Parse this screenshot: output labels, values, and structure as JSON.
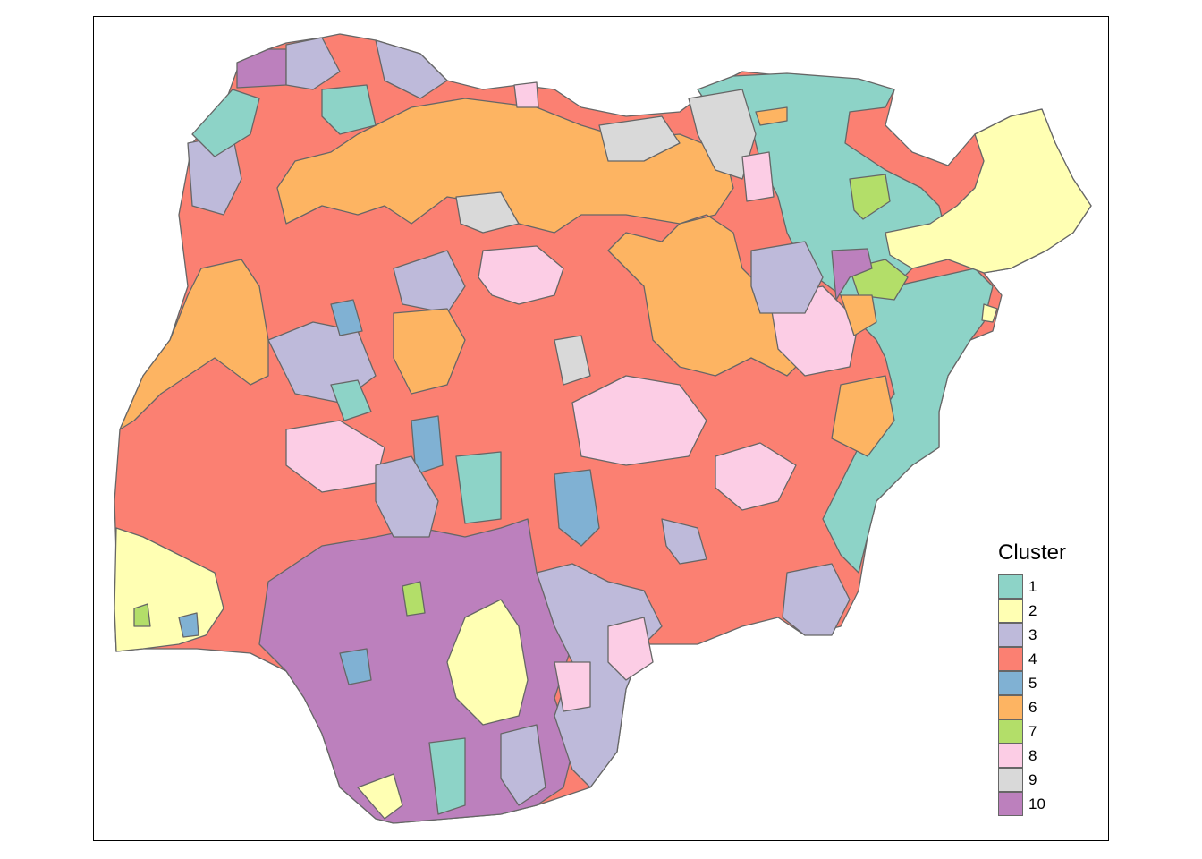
{
  "map": {
    "legend_title": "Cluster",
    "clusters": [
      {
        "label": "1",
        "color": "#8DD3C7"
      },
      {
        "label": "2",
        "color": "#FFFFB3"
      },
      {
        "label": "3",
        "color": "#BEBADA"
      },
      {
        "label": "4",
        "color": "#FB8072"
      },
      {
        "label": "5",
        "color": "#80B1D3"
      },
      {
        "label": "6",
        "color": "#FDB462"
      },
      {
        "label": "7",
        "color": "#B3DE69"
      },
      {
        "label": "8",
        "color": "#FCCDE5"
      },
      {
        "label": "9",
        "color": "#D9D9D9"
      },
      {
        "label": "10",
        "color": "#BC80BD"
      }
    ],
    "border_color": "#666666",
    "frame_color": "#000000"
  }
}
